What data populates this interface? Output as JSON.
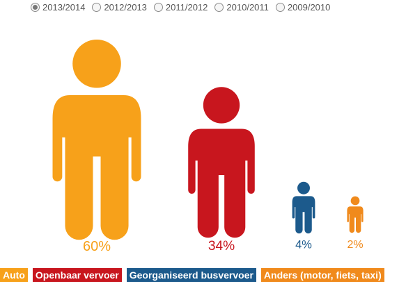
{
  "year_options": [
    {
      "label": "2013/2014",
      "selected": true
    },
    {
      "label": "2012/2013",
      "selected": false
    },
    {
      "label": "2011/2012",
      "selected": false
    },
    {
      "label": "2010/2011",
      "selected": false
    },
    {
      "label": "2009/2010",
      "selected": false
    }
  ],
  "colors": {
    "auto": "#F7A11A",
    "ov": "#C8161E",
    "bus": "#1C5A8C",
    "anders": "#F08A1C"
  },
  "chart_data": {
    "type": "pictograph",
    "title": "",
    "categories": [
      "Auto",
      "Openbaar vervoer",
      "Georganiseerd busvervoer",
      "Anders (motor, fiets, taxi)"
    ],
    "values": [
      60,
      34,
      4,
      2
    ],
    "value_labels": [
      "60%",
      "34%",
      "4%",
      "2%"
    ],
    "unit": "%",
    "legend_position": "bottom-left",
    "series_colors": [
      "#F7A11A",
      "#C8161E",
      "#1C5A8C",
      "#F08A1C"
    ]
  },
  "legend": [
    {
      "label": "Auto",
      "color": "#F7A11A"
    },
    {
      "label": "Openbaar vervoer",
      "color": "#C8161E"
    },
    {
      "label": "Georganiseerd busvervoer",
      "color": "#1C5A8C"
    },
    {
      "label": "Anders (motor, fiets, taxi)",
      "color": "#F08A1C"
    }
  ]
}
